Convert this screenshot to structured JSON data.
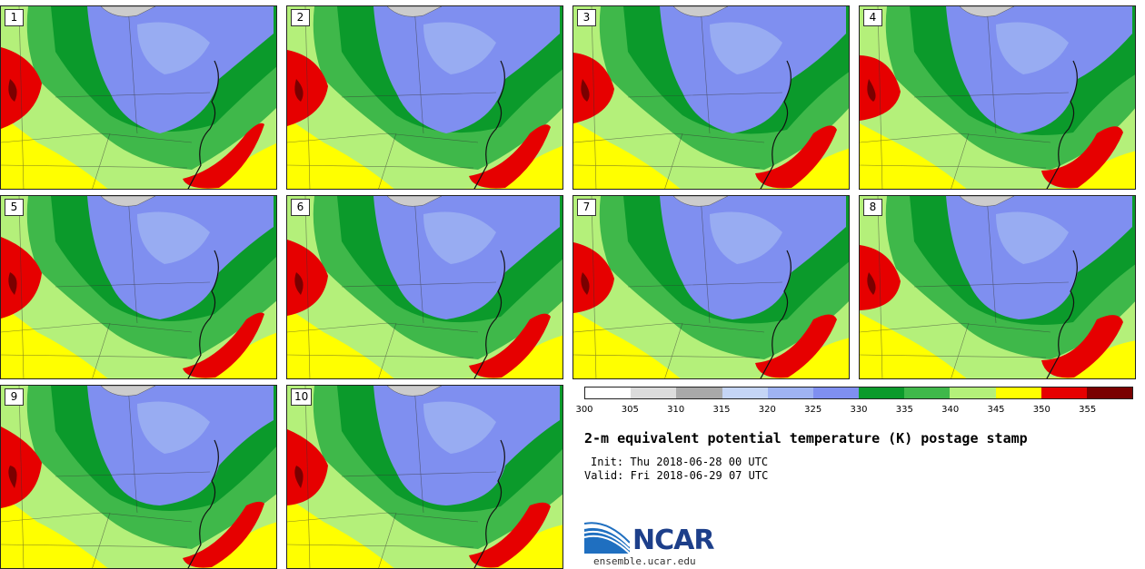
{
  "title": "2-m equivalent potential temperature (K) postage stamp",
  "init_text": "Init: Thu 2018-06-28 00 UTC",
  "valid_text": "Valid: Fri 2018-06-29 07 UTC",
  "panels": [
    {
      "label": "1"
    },
    {
      "label": "2"
    },
    {
      "label": "3"
    },
    {
      "label": "4"
    },
    {
      "label": "5"
    },
    {
      "label": "6"
    },
    {
      "label": "7"
    },
    {
      "label": "8"
    },
    {
      "label": "9"
    },
    {
      "label": "10"
    }
  ],
  "colorbar": {
    "ticks": [
      "300",
      "305",
      "310",
      "315",
      "320",
      "325",
      "330",
      "335",
      "340",
      "345",
      "350",
      "355"
    ],
    "colors": [
      "#ffffff",
      "#dcdcdc",
      "#a9a9a9",
      "#c5d5f5",
      "#9fb3f2",
      "#7f8ff0",
      "#0b9a2b",
      "#3fb84a",
      "#b4f07a",
      "#ffff00",
      "#e60000",
      "#7a0000"
    ]
  },
  "palette": {
    "yellow": "#ffff00",
    "light_green": "#b4f07a",
    "green": "#3fb84a",
    "dark_green": "#0b9a2b",
    "blue": "#7f8ff0",
    "light_blue": "#9fb3f2",
    "red": "#e60000",
    "dark_red": "#7a0000",
    "border": "#333333"
  },
  "logo": {
    "name": "NCAR",
    "url": "ensemble.ucar.edu"
  }
}
